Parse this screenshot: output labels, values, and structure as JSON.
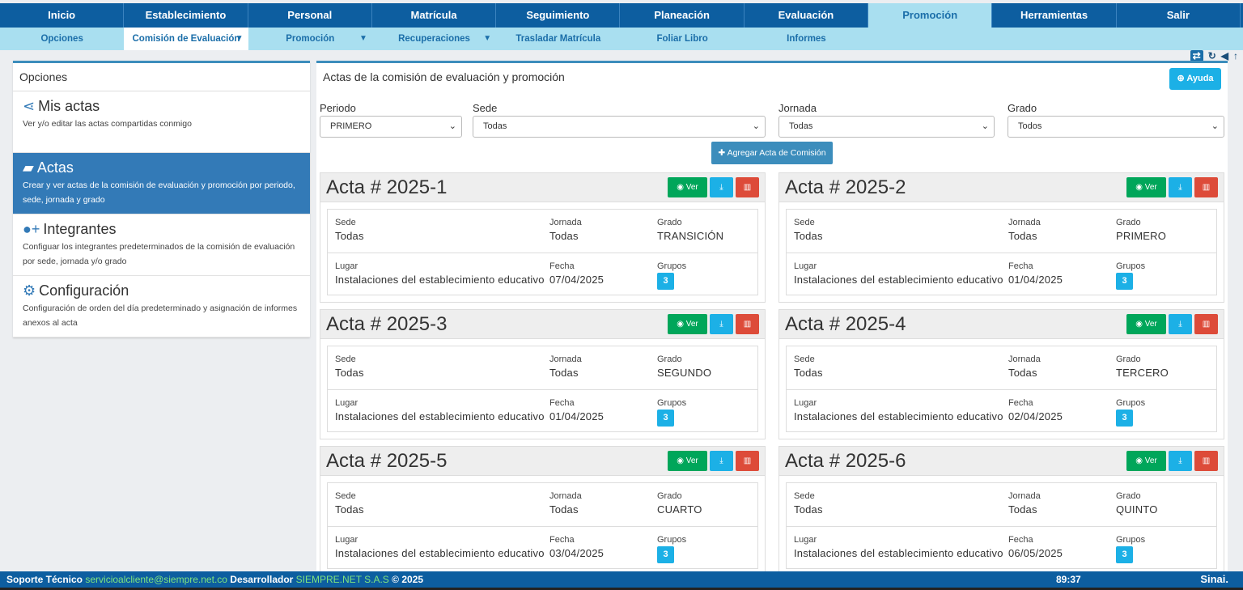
{
  "topnav": [
    "Inicio",
    "Establecimiento",
    "Personal",
    "Matrícula",
    "Seguimiento",
    "Planeación",
    "Evaluación",
    "Promoción",
    "Herramientas",
    "Salir"
  ],
  "subnav": {
    "opciones": "Opciones",
    "comision": "Comisión de Evaluación",
    "promocion": "Promoción",
    "recuperaciones": "Recuperaciones",
    "trasladar": "Trasladar Matrícula",
    "foliar": "Foliar Libro",
    "informes": "Informes"
  },
  "left": {
    "header": "Opciones",
    "items": [
      {
        "title": "Mis actas",
        "desc": "Ver y/o editar las actas compartidas conmigo",
        "icon": "share-icon"
      },
      {
        "title": "Actas",
        "desc": "Crear y ver actas de la comisión de evaluación y promoción por periodo, sede, jornada y grado",
        "icon": "book-icon"
      },
      {
        "title": "Integrantes",
        "desc": "Configuar los integrantes predeterminados de la comisión de evaluación por sede, jornada y/o grado",
        "icon": "user-plus-icon"
      },
      {
        "title": "Configuración",
        "desc": "Configuración de orden del día predeterminado y asignación de informes anexos al acta",
        "icon": "gears-icon"
      }
    ]
  },
  "main": {
    "title": "Actas de la comisión de evaluación y promoción",
    "help": "Ayuda",
    "add_button": "Agregar Acta de Comisión",
    "filters": {
      "periodo": {
        "label": "Periodo",
        "value": "PRIMERO"
      },
      "sede": {
        "label": "Sede",
        "value": "Todas"
      },
      "jornada": {
        "label": "Jornada",
        "value": "Todas"
      },
      "grado": {
        "label": "Grado",
        "value": "Todos"
      }
    },
    "labels": {
      "sede": "Sede",
      "jornada": "Jornada",
      "grado": "Grado",
      "lugar": "Lugar",
      "fecha": "Fecha",
      "grupos": "Grupos",
      "ver": "Ver"
    },
    "cards": [
      {
        "title": "Acta # 2025-1",
        "sede": "Todas",
        "jornada": "Todas",
        "grado": "TRANSICIÓN",
        "lugar": "Instalaciones del establecimiento educativo",
        "fecha": "07/04/2025",
        "grupos": "3"
      },
      {
        "title": "Acta # 2025-2",
        "sede": "Todas",
        "jornada": "Todas",
        "grado": "PRIMERO",
        "lugar": "Instalaciones del establecimiento educativo",
        "fecha": "01/04/2025",
        "grupos": "3"
      },
      {
        "title": "Acta # 2025-3",
        "sede": "Todas",
        "jornada": "Todas",
        "grado": "SEGUNDO",
        "lugar": "Instalaciones del establecimiento educativo",
        "fecha": "01/04/2025",
        "grupos": "3"
      },
      {
        "title": "Acta # 2025-4",
        "sede": "Todas",
        "jornada": "Todas",
        "grado": "TERCERO",
        "lugar": "Instalaciones del establecimiento educativo",
        "fecha": "02/04/2025",
        "grupos": "3"
      },
      {
        "title": "Acta # 2025-5",
        "sede": "Todas",
        "jornada": "Todas",
        "grado": "CUARTO",
        "lugar": "Instalaciones del establecimiento educativo",
        "fecha": "03/04/2025",
        "grupos": "3"
      },
      {
        "title": "Acta # 2025-6",
        "sede": "Todas",
        "jornada": "Todas",
        "grado": "QUINTO",
        "lugar": "Instalaciones del establecimiento educativo",
        "fecha": "06/05/2025",
        "grupos": "3"
      }
    ]
  },
  "footer": {
    "soporte": "Soporte Técnico",
    "email": "servicioalcliente@siempre.net.co",
    "desarrollador": "Desarrollador",
    "company": "SIEMPRE.NET S.A.S",
    "copyright": "© 2025",
    "time": "89:37",
    "brand": "Sinai."
  }
}
